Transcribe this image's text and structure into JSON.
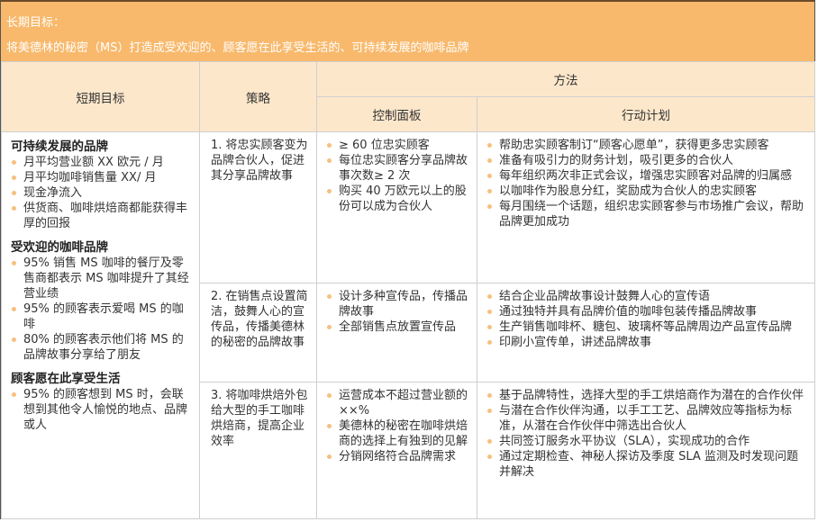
{
  "banner": {
    "label": "长期目标：",
    "goal": "将美德林的秘密（MS）打造成受欢迎的、顾客愿在此享受生活的、可持续发展的咖啡品牌",
    "color": "#f8b96c"
  },
  "headers": {
    "short_term": "短期目标",
    "strategy": "策略",
    "method": "方法",
    "dashboard": "控制面板",
    "action_plan": "行动计划",
    "color": "#fde7cb"
  },
  "short_term_goals": [
    {
      "title": "可持续发展的品牌",
      "items": [
        "月平均营业额 XX 欧元 / 月",
        "月平均咖啡销售量 XX/ 月",
        "现金净流入",
        "供货商、咖啡烘焙商都能获得丰厚的回报"
      ]
    },
    {
      "title": "受欢迎的咖啡品牌",
      "items": [
        "95% 销售 MS 咖啡的餐厅及零售商都表示 MS 咖啡提升了其经营业绩",
        "95% 的顾客表示爱喝 MS 的咖啡",
        "80% 的顾客表示他们将 MS 的品牌故事分享给了朋友"
      ]
    },
    {
      "title": "顾客愿在此享受生活",
      "items": [
        "95% 的顾客想到 MS 时，会联想到其他令人愉悦的地点、品牌或人"
      ]
    }
  ],
  "rows": [
    {
      "strategy": "1. 将忠实顾客变为品牌合伙人，促进其分享品牌故事",
      "dashboard": [
        "≥ 60 位忠实顾客",
        "每位忠实顾客分享品牌故事次数≥ 2 次",
        "购买 40 万欧元以上的股份可以成为合伙人"
      ],
      "actions": [
        "帮助忠实顾客制订“顾客心愿单”，获得更多忠实顾客",
        "准备有吸引力的财务计划，吸引更多的合伙人",
        "每年组织两次非正式会议，增强忠实顾客对品牌的归属感",
        "以咖啡作为股息分红，奖励成为合伙人的忠实顾客",
        "每月围绕一个话题，组织忠实顾客参与市场推广会议，帮助品牌更加成功"
      ]
    },
    {
      "strategy": "2. 在销售点设置简洁，鼓舞人心的宣传品，传播美德林的秘密的品牌故事",
      "dashboard": [
        "设计多种宣传品，传播品牌故事",
        "全部销售点放置宣传品"
      ],
      "actions": [
        "结合企业品牌故事设计鼓舞人心的宣传语",
        "通过独特并具有品牌价值的咖啡包装传播品牌故事",
        "生产销售咖啡杯、糖包、玻璃杯等品牌周边产品宣传品牌",
        "印刷小宣传单，讲述品牌故事"
      ]
    },
    {
      "strategy": "3. 将咖啡烘焙外包给大型的手工咖啡烘焙商，提高企业效率",
      "dashboard": [
        "运营成本不超过营业额的 ××%",
        "美德林的秘密在咖啡烘焙商的选择上有独到的见解",
        "分销网络符合品牌需求"
      ],
      "actions": [
        "基于品牌特性，选择大型的手工烘焙商作为潜在的合作伙伴",
        "与潜在合作伙伴沟通，以手工工艺、品牌效应等指标为标准，从潜在合作伙伴中筛选出合伙人",
        "共同签订服务水平协议（SLA），实现成功的合作",
        "通过定期检查、神秘人探访及季度 SLA 监测及时发现问题并解决"
      ]
    }
  ],
  "bullet_color": "#f6c07f"
}
